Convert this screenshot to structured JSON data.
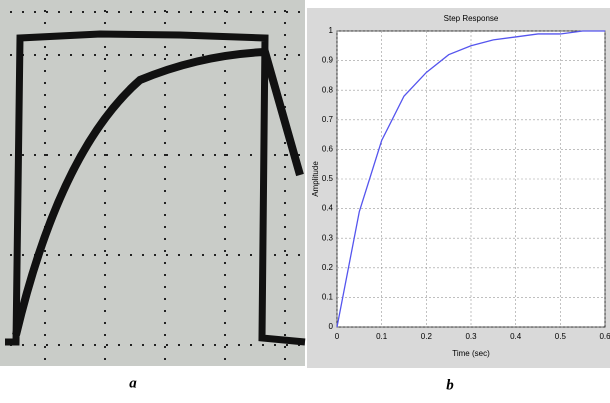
{
  "chart_data": {
    "type": "line",
    "title": "Step Response",
    "xlabel": "Time (sec)",
    "ylabel": "Amplitude",
    "x": [
      0,
      0.05,
      0.1,
      0.15,
      0.2,
      0.25,
      0.3,
      0.35,
      0.4,
      0.45,
      0.5,
      0.55,
      0.6
    ],
    "values": [
      0,
      0.39,
      0.63,
      0.78,
      0.86,
      0.92,
      0.95,
      0.97,
      0.98,
      0.99,
      0.99,
      1.0,
      1.0
    ],
    "color": "#5555ee",
    "xlim": [
      0,
      0.6
    ],
    "xticks": [
      0,
      0.1,
      0.2,
      0.3,
      0.4,
      0.5,
      0.6
    ],
    "ylim": [
      0,
      1
    ],
    "yticks": [
      0,
      0.1,
      0.2,
      0.3,
      0.4,
      0.5,
      0.6,
      0.7,
      0.8,
      0.9,
      1
    ],
    "grid": true
  },
  "captions": [
    "a",
    "b"
  ]
}
